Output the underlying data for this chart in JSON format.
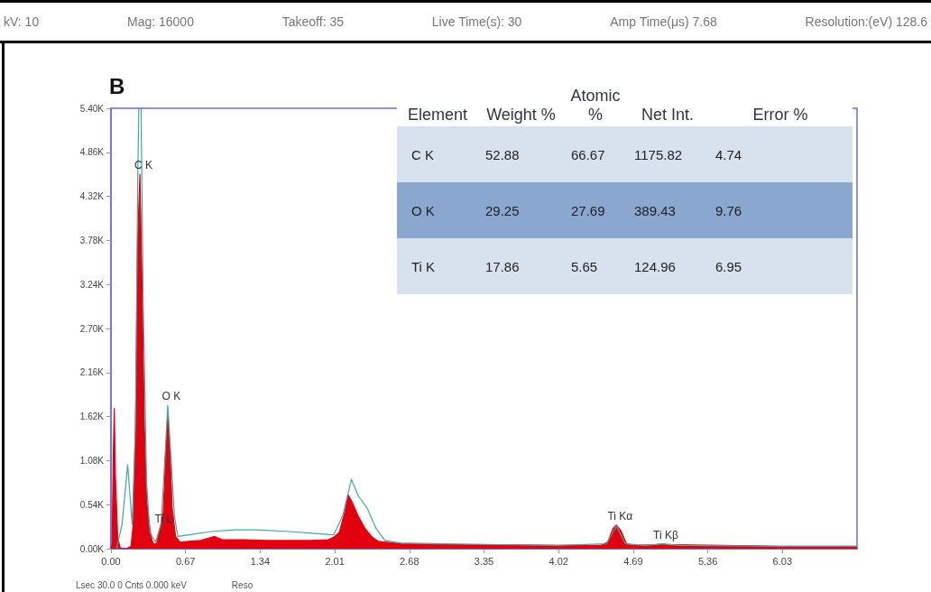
{
  "chart_data": [
    {
      "type": "area",
      "title": "B",
      "annotations": [
        "kV: 10",
        "Mag: 16000",
        "Takeoff: 35",
        "Live Time(s): 30",
        "Amp Time(μs) 7.68",
        "Resolution:(eV) 128.6",
        "Lsec 30.0 0 Cnts 0.000 keV",
        "Reso",
        {
          "text": "C K",
          "x": 0.26,
          "y": 4590
        },
        {
          "text": "O K",
          "x": 0.51,
          "y": 1760
        },
        {
          "text": "Ti L",
          "x": 0.44,
          "y": 250
        },
        {
          "text": "Ti Kα",
          "x": 4.54,
          "y": 290
        },
        {
          "text": "Ti Kβ",
          "x": 4.95,
          "y": 60
        }
      ],
      "xlim": [
        0,
        6.7
      ],
      "xticks": [
        {
          "value": 0,
          "label": "0.00"
        },
        {
          "value": 0.67,
          "label": "0.67"
        },
        {
          "value": 1.34,
          "label": "1.34"
        },
        {
          "value": 2.01,
          "label": "2.01"
        },
        {
          "value": 2.68,
          "label": "2.68"
        },
        {
          "value": 3.35,
          "label": "3.35"
        },
        {
          "value": 4.02,
          "label": "4.02"
        },
        {
          "value": 4.69,
          "label": "4.69"
        },
        {
          "value": 5.36,
          "label": "5.36"
        },
        {
          "value": 6.03,
          "label": "6.03"
        }
      ],
      "ylim": [
        0,
        5400
      ],
      "yticks": [
        {
          "value": 0,
          "label": "0.00K"
        },
        {
          "value": 540,
          "label": "0.54K"
        },
        {
          "value": 1080,
          "label": "1.08K"
        },
        {
          "value": 1620,
          "label": "1.62K"
        },
        {
          "value": 2160,
          "label": "2.16K"
        },
        {
          "value": 2700,
          "label": "2.70K"
        },
        {
          "value": 3240,
          "label": "3.24K"
        },
        {
          "value": 3780,
          "label": "3.78K"
        },
        {
          "value": 4320,
          "label": "4.32K"
        },
        {
          "value": 4860,
          "label": "4.86K"
        },
        {
          "value": 5400,
          "label": "5.40K"
        }
      ],
      "marker": "none",
      "series": [
        {
          "color": "#e3000f",
          "x": [
            0,
            0.01,
            0.02,
            0.03,
            0.04,
            0.06,
            0.08,
            0.1,
            0.14,
            0.18,
            0.2,
            0.22,
            0.24,
            0.26,
            0.28,
            0.3,
            0.32,
            0.34,
            0.36,
            0.38,
            0.41,
            0.44,
            0.47,
            0.49,
            0.51,
            0.53,
            0.55,
            0.58,
            0.62,
            0.7,
            0.8,
            0.93,
            1.0,
            1.2,
            1.4,
            1.6,
            1.8,
            1.95,
            2.0,
            2.05,
            2.1,
            2.13,
            2.17,
            2.22,
            2.28,
            2.34,
            2.4,
            2.6,
            3.0,
            3.5,
            4.0,
            4.4,
            4.46,
            4.51,
            4.54,
            4.58,
            4.63,
            4.7,
            4.9,
            4.95,
            5.0,
            5.5,
            6.0,
            6.7
          ],
          "values": [
            0,
            60,
            1100,
            1720,
            900,
            150,
            20,
            0,
            0,
            30,
            300,
            1500,
            3800,
            4590,
            3200,
            1500,
            600,
            350,
            150,
            60,
            60,
            250,
            450,
            1100,
            1650,
            1200,
            500,
            150,
            80,
            90,
            100,
            150,
            110,
            110,
            100,
            100,
            100,
            110,
            140,
            200,
            450,
            660,
            560,
            400,
            250,
            150,
            90,
            60,
            50,
            50,
            40,
            40,
            80,
            250,
            290,
            220,
            60,
            40,
            50,
            60,
            50,
            40,
            30,
            30
          ]
        },
        {
          "type": "line",
          "color": "#3fa9a4",
          "x": [
            0.05,
            0.1,
            0.15,
            0.19,
            0.22,
            0.24,
            0.25,
            0.27,
            0.29,
            0.32,
            0.35,
            0.4,
            0.45,
            0.48,
            0.51,
            0.54,
            0.57,
            0.6,
            0.7,
            0.9,
            1.1,
            1.3,
            1.6,
            1.8,
            2.0,
            2.08,
            2.16,
            2.22,
            2.3,
            2.38,
            2.46,
            2.6,
            3.0,
            3.5,
            4.0,
            4.45,
            4.54,
            4.62,
            4.8,
            4.95,
            5.1,
            6.0,
            6.7
          ],
          "values": [
            0,
            300,
            1030,
            300,
            1500,
            4500,
            5400,
            5400,
            3000,
            800,
            200,
            80,
            300,
            1000,
            1760,
            1100,
            400,
            150,
            170,
            210,
            230,
            230,
            210,
            190,
            170,
            400,
            850,
            650,
            500,
            250,
            100,
            70,
            60,
            50,
            40,
            60,
            280,
            60,
            40,
            60,
            40,
            30,
            30
          ]
        }
      ]
    },
    {
      "type": "other",
      "annotations": [
        "Element",
        "Weight %",
        "Atomic %",
        "Net Int.",
        "Error %",
        "C K",
        "52.88",
        "66.67",
        "1175.82",
        "4.74",
        "O K",
        "29.25",
        "27.69",
        "389.43",
        "9.76",
        "Ti K",
        "17.86",
        "5.65",
        "124.96",
        "6.95"
      ]
    }
  ]
}
